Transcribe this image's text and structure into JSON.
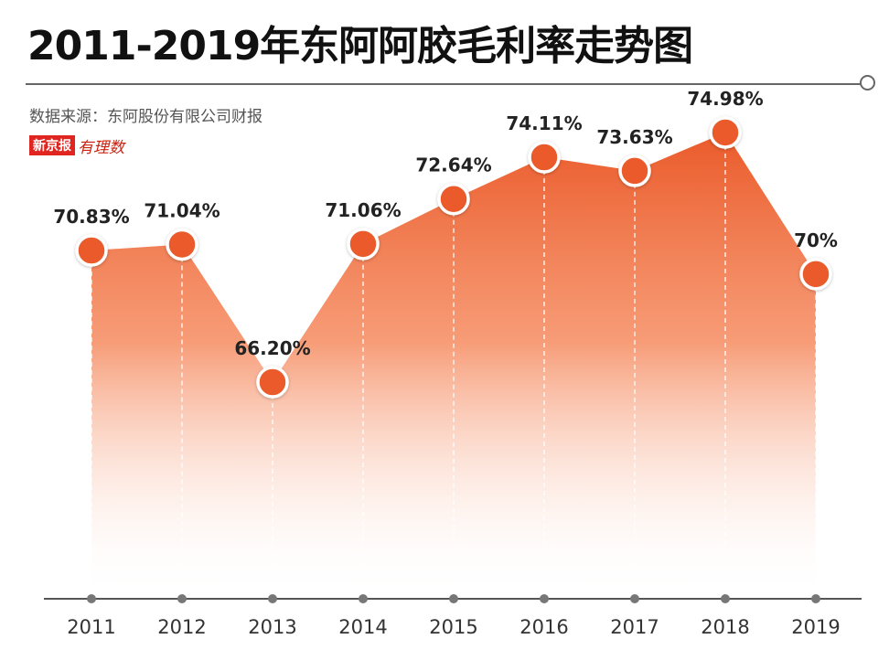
{
  "header": {
    "title": "2011-2019年东阿阿胶毛利率走势图",
    "source": "数据来源：东阿股份有限公司财报",
    "logo_text": "新京报",
    "logo_script": "有理数"
  },
  "colors": {
    "accent": "#ef6a34",
    "point_fill": "#ea5a2a",
    "axis": "#555555",
    "text": "#222222"
  },
  "chart_data": {
    "type": "area",
    "title": "2011-2019年东阿阿胶毛利率走势图",
    "categories": [
      "2011",
      "2012",
      "2013",
      "2014",
      "2015",
      "2016",
      "2017",
      "2018",
      "2019"
    ],
    "series": [
      {
        "values": [
          70.83,
          71.04,
          66.2,
          71.06,
          72.64,
          74.11,
          73.63,
          74.98,
          70.0
        ],
        "labels": [
          "70.83%",
          "71.04%",
          "66.20%",
          "71.06%",
          "72.64%",
          "74.11%",
          "73.63%",
          "74.98%",
          "70%"
        ]
      }
    ],
    "grid": false,
    "legend": "none"
  }
}
